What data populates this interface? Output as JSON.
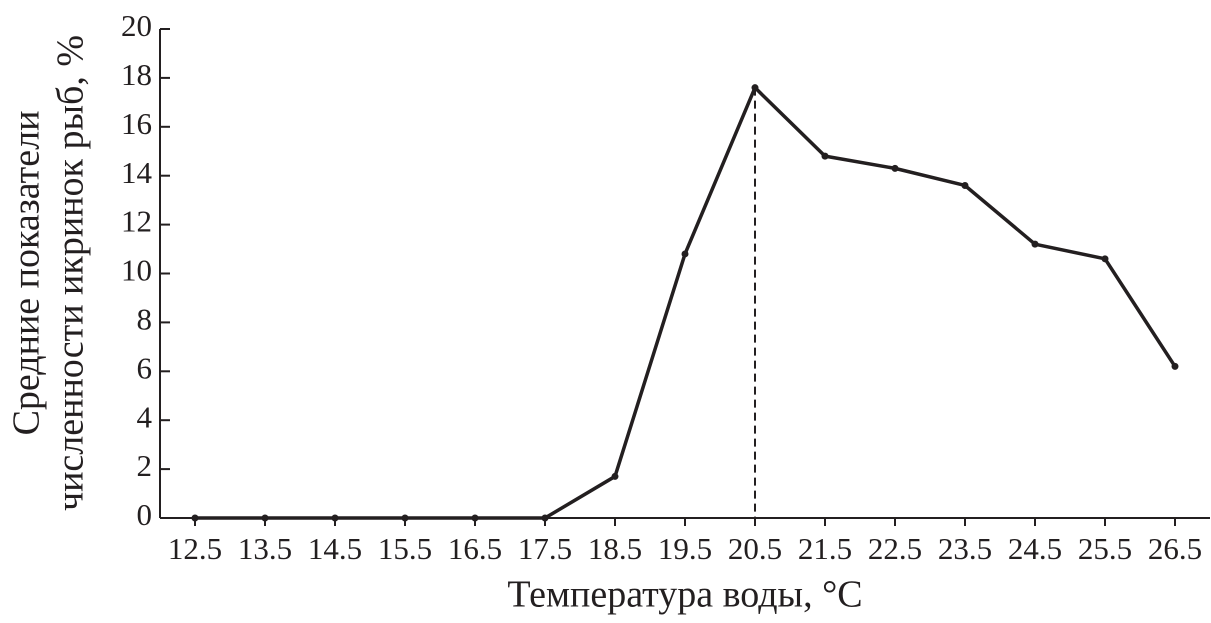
{
  "chart_data": {
    "type": "line",
    "x": [
      12.5,
      13.5,
      14.5,
      15.5,
      16.5,
      17.5,
      18.5,
      19.5,
      20.5,
      21.5,
      22.5,
      23.5,
      24.5,
      25.5,
      26.5
    ],
    "series": [
      {
        "color": "#231f20",
        "values": [
          0,
          0,
          0,
          0,
          0,
          0,
          1.7,
          10.8,
          17.6,
          14.8,
          14.3,
          13.6,
          11.2,
          10.6,
          6.2
        ]
      }
    ],
    "xlim": [
      12.0,
      27.0
    ],
    "xticks": [
      12.5,
      13.5,
      14.5,
      15.5,
      16.5,
      17.5,
      18.5,
      19.5,
      20.5,
      21.5,
      22.5,
      23.5,
      24.5,
      25.5,
      26.5
    ],
    "ylim": [
      0,
      20
    ],
    "yticks": [
      0,
      2,
      4,
      6,
      8,
      10,
      12,
      14,
      16,
      18,
      20
    ],
    "xlabel": "Температура воды, °C",
    "ylabel": [
      "Средние показатели",
      "численности икринок рыб, %"
    ],
    "peak_line": true
  }
}
